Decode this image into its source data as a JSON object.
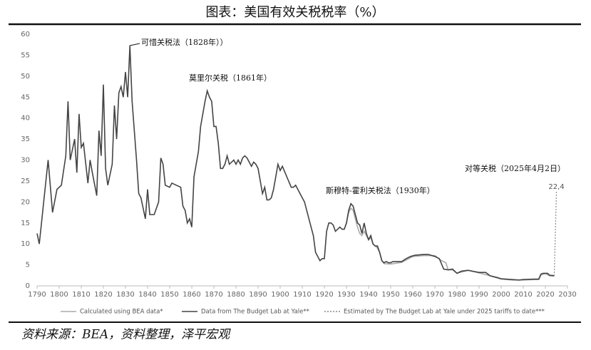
{
  "chart_data": {
    "type": "line",
    "title": "图表：美国有效关税税率（%）",
    "source": "资料来源：BEA，资料整理，泽平宏观",
    "annotations": [
      "可惜关税法（1828年））",
      "莫里尔关税（1861年）",
      "斯穆特-霍利关税法（1930年）",
      "对等关税（2025年4月2日）"
    ],
    "xlim": [
      1790,
      2030
    ],
    "xticks": [
      1790,
      1800,
      1810,
      1820,
      1830,
      1840,
      1850,
      1860,
      1870,
      1880,
      1890,
      1900,
      1910,
      1920,
      1930,
      1940,
      1950,
      1960,
      1970,
      1980,
      1990,
      2000,
      2010,
      2020,
      2030
    ],
    "ylim": [
      0,
      60
    ],
    "yticks": [
      0,
      5,
      10,
      15,
      20,
      25,
      30,
      35,
      40,
      45,
      50,
      55,
      60
    ],
    "legend": "bottom",
    "series": [
      {
        "name": "Calculated using BEA data*",
        "color": "#aaaaaa",
        "dashed": false,
        "x": [
          1929,
          1930,
          1931,
          1932,
          1933,
          1934,
          1935,
          1936,
          1937,
          1938,
          1939,
          1940,
          1941,
          1942,
          1943,
          1944,
          1945,
          1946,
          1947,
          1950,
          1955,
          1960,
          1965,
          1970,
          1973,
          1975,
          1976,
          1978,
          1980,
          1985,
          1990,
          1995,
          2000,
          2005,
          2010,
          2015,
          2017,
          2018,
          2019,
          2020,
          2022,
          2024
        ],
        "values": [
          13.5,
          15,
          17.5,
          18.5,
          18,
          16,
          14,
          12.5,
          12,
          13,
          12,
          11,
          11.5,
          10,
          9.5,
          9,
          8,
          6,
          5.3,
          5.2,
          5.6,
          7,
          7.2,
          7.2,
          6,
          5.5,
          3.8,
          3.8,
          3,
          3.7,
          3.1,
          2.4,
          1.6,
          1.4,
          1.4,
          1.5,
          1.5,
          2.6,
          2.8,
          2.9,
          2.4,
          2.3
        ]
      },
      {
        "name": "Data from The Budget Lab at Yale**",
        "color": "#444444",
        "dashed": false,
        "x": [
          1790,
          1791,
          1793,
          1795,
          1797,
          1799,
          1801,
          1803,
          1804,
          1805,
          1807,
          1808,
          1809,
          1810,
          1811,
          1813,
          1814,
          1815,
          1817,
          1818,
          1819,
          1820,
          1821,
          1822,
          1824,
          1825,
          1826,
          1827,
          1828,
          1829,
          1830,
          1831,
          1832,
          1833,
          1834,
          1835,
          1836,
          1837,
          1839,
          1840,
          1841,
          1843,
          1845,
          1846,
          1847,
          1848,
          1850,
          1851,
          1853,
          1855,
          1856,
          1857,
          1858,
          1859,
          1860,
          1861,
          1863,
          1864,
          1866,
          1867,
          1868,
          1869,
          1870,
          1871,
          1872,
          1873,
          1874,
          1875,
          1876,
          1877,
          1879,
          1880,
          1881,
          1882,
          1883,
          1884,
          1885,
          1887,
          1888,
          1889,
          1890,
          1891,
          1892,
          1893,
          1894,
          1895,
          1896,
          1897,
          1899,
          1900,
          1901,
          1903,
          1905,
          1906,
          1907,
          1909,
          1911,
          1913,
          1915,
          1916,
          1918,
          1919,
          1920,
          1921,
          1922,
          1923,
          1924,
          1925,
          1926,
          1927,
          1928,
          1929,
          1930,
          1931,
          1932,
          1933,
          1934,
          1935,
          1936,
          1937,
          1938,
          1939,
          1940,
          1941,
          1942,
          1943,
          1944,
          1945,
          1946,
          1947,
          1948,
          1949,
          1950,
          1951,
          1955,
          1957,
          1959,
          1961,
          1965,
          1967,
          1970,
          1972,
          1974,
          1976,
          1978,
          1980,
          1982,
          1985,
          1988,
          1990,
          1993,
          1995,
          1998,
          2000,
          2005,
          2008,
          2010,
          2015,
          2017,
          2018,
          2019,
          2020,
          2021,
          2022,
          2023,
          2024
        ],
        "values": [
          12.5,
          10,
          20,
          30,
          17.5,
          23,
          24,
          31,
          44,
          30,
          35,
          27,
          41,
          33,
          34,
          24.5,
          30,
          27,
          21.5,
          37,
          31,
          48,
          28,
          24,
          29,
          43,
          35,
          46,
          47.5,
          45,
          51,
          45,
          57.3,
          44,
          37,
          30,
          22,
          21,
          16,
          23,
          17,
          17,
          20,
          30.5,
          29,
          24,
          23.5,
          24.5,
          24,
          23.5,
          19,
          18,
          15,
          16,
          14,
          26,
          32,
          38,
          44,
          46.5,
          45,
          44,
          38,
          38,
          34,
          28,
          28,
          29,
          31,
          29,
          30,
          29,
          30,
          29,
          30.5,
          31,
          30.5,
          28.5,
          29.5,
          29,
          28,
          25,
          22,
          23.5,
          20.5,
          20.5,
          21,
          23,
          29,
          27.5,
          28.5,
          26,
          23.5,
          23.5,
          24,
          22,
          20,
          16,
          12,
          8,
          6,
          6.5,
          6.5,
          13,
          15,
          15,
          14.5,
          13,
          13.5,
          14,
          13.5,
          13.5,
          15,
          18,
          19.6,
          19,
          17,
          15,
          14.5,
          12.5,
          15,
          12.5,
          11,
          12,
          10,
          9.5,
          9.5,
          8,
          6,
          5.5,
          5.8,
          5.5,
          5.5,
          5.8,
          5.8,
          6.5,
          7,
          7.3,
          7.5,
          7.5,
          7,
          6.5,
          4,
          3.8,
          4,
          3,
          3.5,
          3.7,
          3.4,
          3.2,
          3.2,
          2.4,
          2,
          1.7,
          1.5,
          1.4,
          1.5,
          1.6,
          1.6,
          2.8,
          3,
          3,
          3,
          2.5,
          2.5,
          2.4
        ]
      },
      {
        "name": "Estimated by The Budget Lab at Yale under 2025 tariffs to date***",
        "color": "#888888",
        "dashed": true,
        "x": [
          2024,
          2025
        ],
        "values": [
          2.4,
          22.4
        ],
        "value_labels": [
          null,
          "22,4"
        ]
      }
    ]
  }
}
